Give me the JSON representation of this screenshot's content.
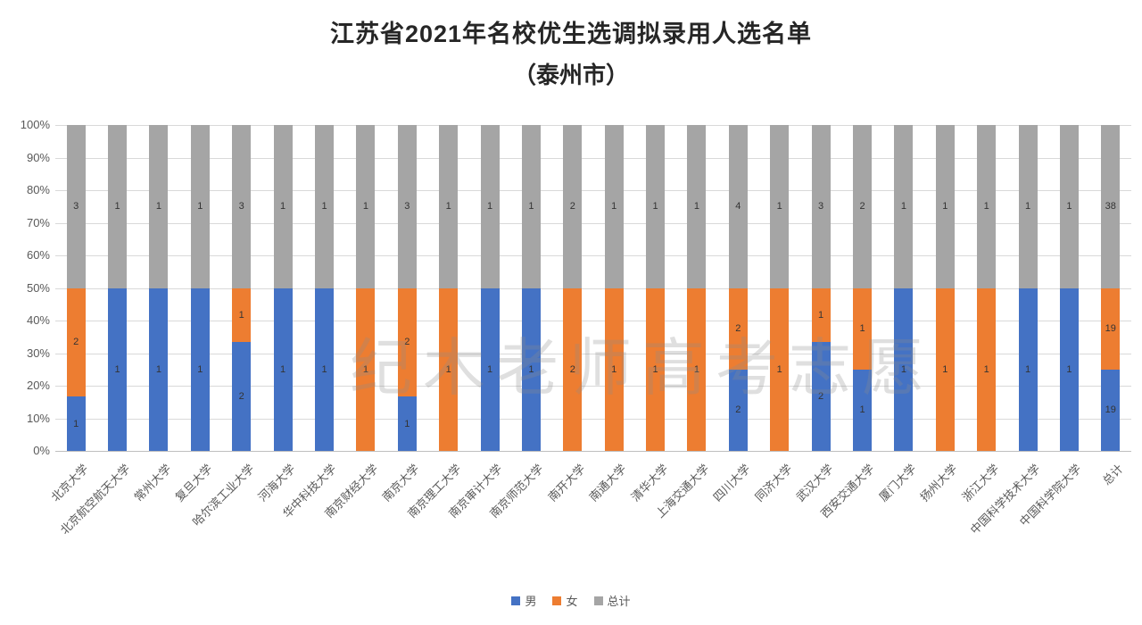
{
  "title": "江苏省2021年名校优生选调拟录用人选名单",
  "subtitle": "（泰州市）",
  "watermark": "纪木老师高考志愿",
  "legend": [
    {
      "label": "男",
      "color": "#4472C4"
    },
    {
      "label": "女",
      "color": "#ED7D31"
    },
    {
      "label": "总计",
      "color": "#A5A5A5"
    }
  ],
  "chart_data": {
    "type": "bar",
    "subtype": "100-percent-stacked-column",
    "title": "江苏省2021年名校优生选调拟录用人选名单（泰州市）",
    "xlabel": "",
    "ylabel": "",
    "ylim": [
      0,
      100
    ],
    "grid": true,
    "legend_position": "bottom",
    "y_ticks": [
      "0%",
      "10%",
      "20%",
      "30%",
      "40%",
      "50%",
      "60%",
      "70%",
      "80%",
      "90%",
      "100%"
    ],
    "categories": [
      "北京大学",
      "北京航空航天大学",
      "常州大学",
      "复旦大学",
      "哈尔滨工业大学",
      "河海大学",
      "华中科技大学",
      "南京财经大学",
      "南京大学",
      "南京理工大学",
      "南京审计大学",
      "南京师范大学",
      "南开大学",
      "南通大学",
      "清华大学",
      "上海交通大学",
      "四川大学",
      "同济大学",
      "武汉大学",
      "西安交通大学",
      "厦门大学",
      "扬州大学",
      "浙江大学",
      "中国科学技术大学",
      "中国科学院大学",
      "总计"
    ],
    "series": [
      {
        "name": "男",
        "color": "#4472C4",
        "values": [
          1,
          1,
          1,
          1,
          2,
          1,
          1,
          0,
          1,
          0,
          1,
          1,
          0,
          0,
          0,
          0,
          2,
          0,
          2,
          1,
          1,
          0,
          0,
          1,
          1,
          19
        ]
      },
      {
        "name": "女",
        "color": "#ED7D31",
        "values": [
          2,
          0,
          0,
          0,
          1,
          0,
          0,
          1,
          2,
          1,
          0,
          0,
          2,
          1,
          1,
          1,
          2,
          1,
          1,
          1,
          0,
          1,
          1,
          0,
          0,
          19
        ]
      },
      {
        "name": "总计",
        "color": "#A5A5A5",
        "values": [
          3,
          1,
          1,
          1,
          3,
          1,
          1,
          1,
          3,
          1,
          1,
          1,
          2,
          1,
          1,
          1,
          4,
          1,
          3,
          2,
          1,
          1,
          1,
          1,
          1,
          38
        ]
      }
    ]
  }
}
